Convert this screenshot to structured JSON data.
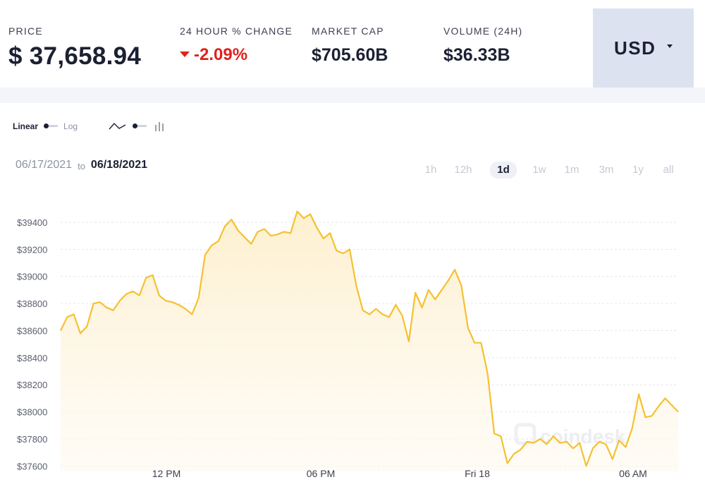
{
  "header": {
    "price": {
      "label": "PRICE",
      "value": "$ 37,658.94"
    },
    "change": {
      "label": "24 HOUR % CHANGE",
      "value": "-2.09%"
    },
    "market_cap": {
      "label": "MARKET CAP",
      "value": "$705.60B"
    },
    "volume": {
      "label": "VOLUME (24H)",
      "value": "$36.33B"
    },
    "currency": "USD"
  },
  "controls": {
    "scale_linear": "Linear",
    "scale_log": "Log",
    "active_scale": "Linear",
    "chart_type_line_icon": "line-chart-icon",
    "chart_type_bar_icon": "bar-chart-icon"
  },
  "range": {
    "from": "06/17/2021",
    "to_word": "to",
    "to": "06/18/2021"
  },
  "periods": [
    "1h",
    "12h",
    "1d",
    "1w",
    "1m",
    "3m",
    "1y",
    "all"
  ],
  "active_period": "1d",
  "colors": {
    "line": "#f5c12f",
    "fill_top": "#fdf0cf",
    "negative": "#e1211c",
    "currency_bg": "#dde2f1"
  },
  "watermark": "coindesk",
  "chart_data": {
    "type": "area",
    "x_tick_labels": [
      "12 PM",
      "06 PM",
      "Fri 18",
      "06 AM"
    ],
    "y_ticks": [
      37600,
      37800,
      38000,
      38200,
      38400,
      38600,
      38800,
      39000,
      39200,
      39400
    ],
    "y_tick_format": "$",
    "ylim": [
      37560,
      39530
    ],
    "grid": "horizontal-dashed",
    "series": [
      {
        "values": [
          38600,
          38700,
          38720,
          38580,
          38630,
          38800,
          38810,
          38770,
          38750,
          38820,
          38870,
          38890,
          38860,
          38990,
          39010,
          38860,
          38820,
          38810,
          38790,
          38760,
          38720,
          38840,
          39160,
          39230,
          39260,
          39370,
          39420,
          39340,
          39290,
          39240,
          39330,
          39350,
          39300,
          39310,
          39330,
          39320,
          39480,
          39430,
          39460,
          39360,
          39280,
          39320,
          39190,
          39170,
          39200,
          38930,
          38750,
          38720,
          38760,
          38720,
          38700,
          38790,
          38710,
          38520,
          38880,
          38770,
          38900,
          38830,
          38900,
          38970,
          39050,
          38930,
          38620,
          38510,
          38510,
          38280,
          37840,
          37820,
          37620,
          37690,
          37720,
          37780,
          37770,
          37800,
          37760,
          37820,
          37770,
          37780,
          37730,
          37770,
          37600,
          37730,
          37780,
          37760,
          37650,
          37790,
          37740,
          37880,
          38130,
          37960,
          37970,
          38040,
          38100,
          38050,
          38000
        ]
      }
    ]
  }
}
